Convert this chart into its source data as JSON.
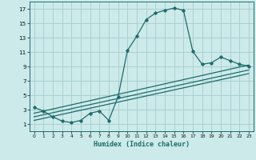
{
  "xlabel": "Humidex (Indice chaleur)",
  "bg_color": "#cceaea",
  "grid_color": "#aacfcf",
  "line_color": "#1e6b6b",
  "xlim": [
    -0.5,
    23.5
  ],
  "ylim": [
    0,
    18
  ],
  "xticks": [
    0,
    1,
    2,
    3,
    4,
    5,
    6,
    7,
    8,
    9,
    10,
    11,
    12,
    13,
    14,
    15,
    16,
    17,
    18,
    19,
    20,
    21,
    22,
    23
  ],
  "yticks": [
    1,
    3,
    5,
    7,
    9,
    11,
    13,
    15,
    17
  ],
  "curve_x": [
    0,
    1,
    2,
    3,
    4,
    5,
    6,
    7,
    8,
    9,
    10,
    11,
    12,
    13,
    14,
    15,
    16,
    17,
    18,
    19,
    20,
    21,
    22,
    23
  ],
  "curve_y": [
    3.3,
    2.8,
    2.0,
    1.4,
    1.2,
    1.5,
    2.5,
    2.8,
    1.5,
    4.8,
    11.2,
    13.2,
    15.5,
    16.4,
    16.8,
    17.1,
    16.8,
    11.1,
    9.3,
    9.5,
    10.3,
    9.8,
    9.3,
    9.0
  ],
  "line1_x": [
    0,
    23
  ],
  "line1_y": [
    2.5,
    9.2
  ],
  "line2_x": [
    0,
    23
  ],
  "line2_y": [
    2.0,
    8.5
  ],
  "line3_x": [
    0,
    23
  ],
  "line3_y": [
    1.5,
    8.0
  ]
}
